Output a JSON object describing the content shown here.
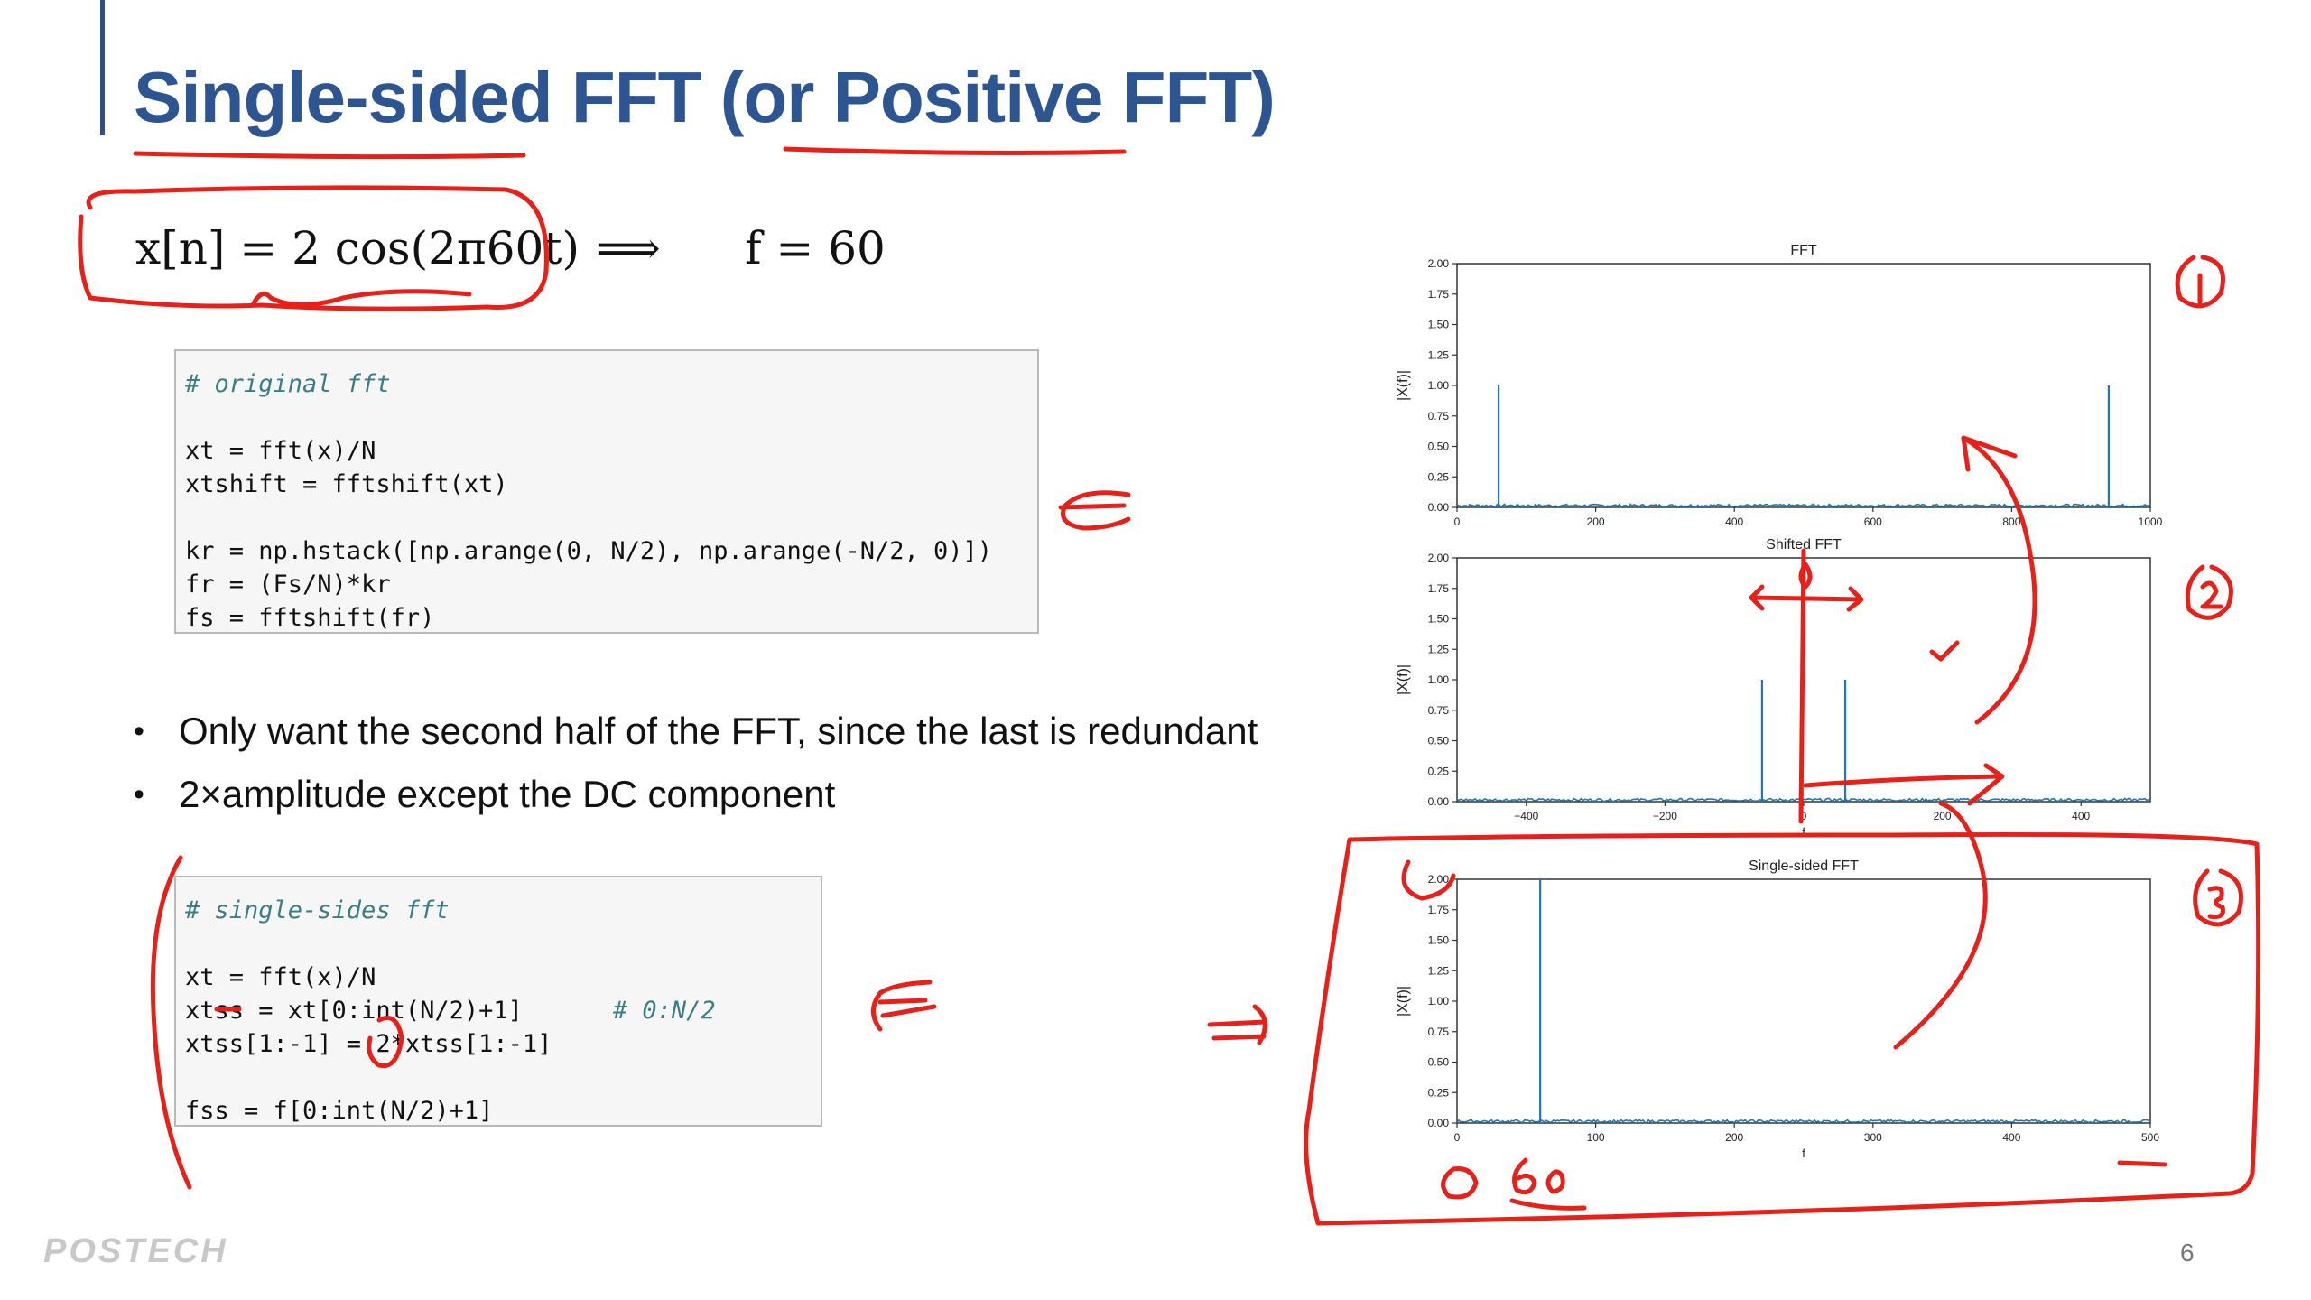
{
  "slide": {
    "title_part1": "Single-sided",
    "title_part2": "FFT (or",
    "title_part3": "Positive FFT)",
    "page_number": "6",
    "logo": "POSTECH"
  },
  "equation": {
    "lhs": "x[n] = 2 cos(2π60t)",
    "arrow": "⟹",
    "rhs": "f = 60"
  },
  "code1": {
    "comment": "# original fft",
    "lines": [
      "xt = fft(x)/N",
      "xtshift = fftshift(xt)",
      "kr = np.hstack([np.arange(0, N/2), np.arange(-N/2, 0)])",
      "fr = (Fs/N)*kr",
      "fs = fftshift(fr)"
    ]
  },
  "code2": {
    "comment": "# single-sides fft",
    "lines": [
      "xt = fft(x)/N",
      "xtss = xt[0:int(N/2)+1]",
      "# 0:N/2",
      "xtss[1:-1] = 2*xtss[1:-1]",
      "fss = f[0:int(N/2)+1]"
    ]
  },
  "bullets": [
    "Only want the second half of the FFT, since the last is redundant",
    "2×amplitude except the DC component"
  ],
  "annotations": {
    "circle1": "①",
    "circle2": "②",
    "circle3": "③",
    "zero": "0",
    "sixty": "60"
  },
  "chart_data": [
    {
      "type": "line",
      "title": "FFT",
      "xlabel": "",
      "ylabel": "|X(f)|",
      "xlim": [
        0,
        1000
      ],
      "ylim": [
        0,
        2.0
      ],
      "xticks": [
        "0",
        "200",
        "400",
        "600",
        "800",
        "1000"
      ],
      "yticks": [
        "0.00",
        "0.25",
        "0.50",
        "0.75",
        "1.00",
        "1.25",
        "1.50",
        "1.75",
        "2.00"
      ],
      "spikes": [
        {
          "x": 60,
          "y": 1.0
        },
        {
          "x": 940,
          "y": 1.0
        }
      ],
      "color": "#1f77b4"
    },
    {
      "type": "line",
      "title": "Shifted FFT",
      "xlabel": "f",
      "ylabel": "|X(f)|",
      "xlim": [
        -500,
        500
      ],
      "ylim": [
        0,
        2.0
      ],
      "xticks": [
        "−400",
        "−200",
        "0",
        "200",
        "400"
      ],
      "yticks": [
        "0.00",
        "0.25",
        "0.50",
        "0.75",
        "1.00",
        "1.25",
        "1.50",
        "1.75",
        "2.00"
      ],
      "spikes": [
        {
          "x": -60,
          "y": 1.0
        },
        {
          "x": 60,
          "y": 1.0
        }
      ],
      "color": "#1f77b4"
    },
    {
      "type": "line",
      "title": "Single-sided FFT",
      "xlabel": "f",
      "ylabel": "|X(f)|",
      "xlim": [
        0,
        500
      ],
      "ylim": [
        0,
        2.0
      ],
      "xticks": [
        "0",
        "100",
        "200",
        "300",
        "400",
        "500"
      ],
      "yticks": [
        "0.00",
        "0.25",
        "0.50",
        "0.75",
        "1.00",
        "1.25",
        "1.50",
        "1.75",
        "2.00"
      ],
      "spikes": [
        {
          "x": 60,
          "y": 2.0
        }
      ],
      "color": "#1f77b4"
    }
  ]
}
